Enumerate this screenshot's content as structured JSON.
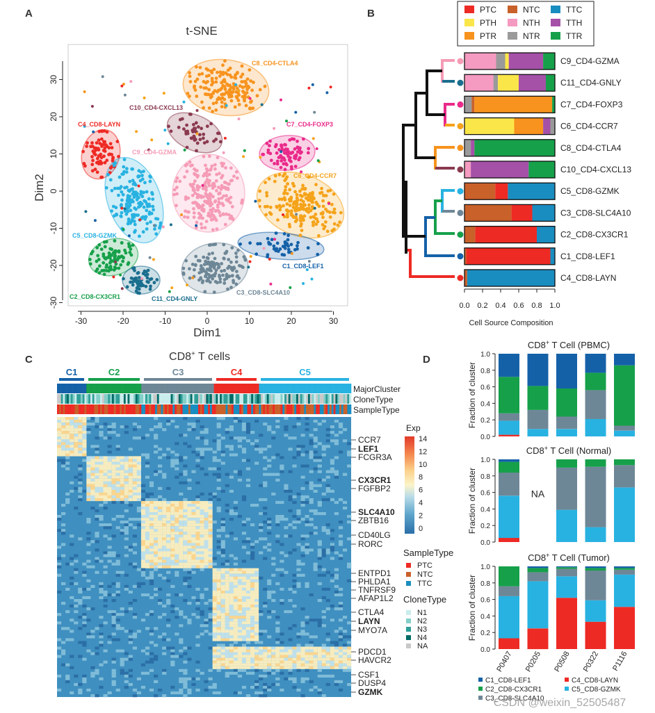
{
  "panel_letters": [
    "A",
    "B",
    "C",
    "D"
  ],
  "colors": {
    "C1": "#1561a8",
    "C2": "#16a04a",
    "C3": "#6e8797",
    "C4": "#ee2a24",
    "C5": "#28b2e1",
    "C6": "#f5a31a",
    "C7": "#ea2a8a",
    "C8": "#f7931e",
    "C9": "#f59bb6",
    "C10": "#8a3a4f",
    "C11": "#1a6e8e",
    "PTC": "#ee2a24",
    "NTC": "#c9612a",
    "TTC": "#1a8dc0",
    "PTH": "#fbe64a",
    "NTH": "#f59ac0",
    "TTH": "#a551a8",
    "PTR": "#f7931e",
    "NTR": "#9a9a9a",
    "TTR": "#16a04a",
    "N1": "#c9ecec",
    "N2": "#84cfc9",
    "N3": "#2f9e97",
    "N4": "#006a66",
    "NA": "#c9c9c9"
  },
  "tsne": {
    "title": "t-SNE",
    "xlabel": "Dim1",
    "ylabel": "Dim2",
    "xticks": [
      "-30",
      "-20",
      "-10",
      "0",
      "10",
      "20",
      "30"
    ],
    "yticks": [
      "30",
      "20",
      "10",
      "0",
      "-10",
      "-20",
      "-30"
    ],
    "clusters": [
      {
        "label": "C8_CD4-CTLA4",
        "color": "#f7931e"
      },
      {
        "label": "C10_CD4-CXCL13",
        "color": "#8a3a4f"
      },
      {
        "label": "C4_CD8-LAYN",
        "color": "#ee2a24"
      },
      {
        "label": "C7_CD4-FOXP3",
        "color": "#ea2a8a"
      },
      {
        "label": "C9_CD4-GZMA",
        "color": "#f59bb6"
      },
      {
        "label": "C6_CD4-CCR7",
        "color": "#f5a31a"
      },
      {
        "label": "C5_CD8-GZMK",
        "color": "#28b2e1"
      },
      {
        "label": "C1_CD8-LEF1",
        "color": "#1561a8"
      },
      {
        "label": "C2_CD8-CX3CR1",
        "color": "#16a04a"
      },
      {
        "label": "C11_CD4-GNLY",
        "color": "#1a6e8e"
      },
      {
        "label": "C3_CD8-SLC4A10",
        "color": "#6e8797"
      }
    ]
  },
  "panel_b": {
    "legend": [
      "PTC",
      "NTC",
      "TTC",
      "PTH",
      "NTH",
      "TTH",
      "PTR",
      "NTR",
      "TTR"
    ],
    "xlabel": "Cell Source Composition",
    "xticks": [
      "0.0",
      "0.2",
      "0.4",
      "0.6",
      "0.8",
      "1.0"
    ],
    "rows": [
      {
        "label": "C9_CD4-GZMA",
        "color": "#f59bb6",
        "segs": [
          [
            "NTH",
            0.35
          ],
          [
            "NTR",
            0.1
          ],
          [
            "PTH",
            0.04
          ],
          [
            "TTH",
            0.38
          ],
          [
            "TTR",
            0.13
          ]
        ]
      },
      {
        "label": "C11_CD4-GNLY",
        "color": "#1a6e8e",
        "segs": [
          [
            "NTH",
            0.32
          ],
          [
            "NTR",
            0.05
          ],
          [
            "PTH",
            0.23
          ],
          [
            "TTH",
            0.3
          ],
          [
            "TTR",
            0.1
          ]
        ]
      },
      {
        "label": "C7_CD4-FOXP3",
        "color": "#ea2a8a",
        "segs": [
          [
            "NTR",
            0.08
          ],
          [
            "NTC",
            0.03
          ],
          [
            "PTR",
            0.86
          ],
          [
            "TTR",
            0.03
          ]
        ]
      },
      {
        "label": "C6_CD4-CCR7",
        "color": "#f5a31a",
        "segs": [
          [
            "PTH",
            0.55
          ],
          [
            "PTR",
            0.32
          ],
          [
            "TTH",
            0.08
          ],
          [
            "NTR",
            0.05
          ]
        ]
      },
      {
        "label": "C8_CD4-CTLA4",
        "color": "#f7931e",
        "segs": [
          [
            "NTR",
            0.07
          ],
          [
            "TTH",
            0.04
          ],
          [
            "TTR",
            0.89
          ]
        ]
      },
      {
        "label": "C10_CD4-CXCL13",
        "color": "#8a3a4f",
        "segs": [
          [
            "NTH",
            0.07
          ],
          [
            "TTH",
            0.64
          ],
          [
            "TTR",
            0.29
          ]
        ]
      },
      {
        "label": "C5_CD8-GZMK",
        "color": "#28b2e1",
        "segs": [
          [
            "NTC",
            0.34
          ],
          [
            "PTC",
            0.14
          ],
          [
            "TTC",
            0.52
          ]
        ]
      },
      {
        "label": "C3_CD8-SLC4A10",
        "color": "#6e8797",
        "segs": [
          [
            "NTC",
            0.52
          ],
          [
            "PTC",
            0.23
          ],
          [
            "TTC",
            0.25
          ]
        ]
      },
      {
        "label": "C2_CD8-CX3CR1",
        "color": "#16a04a",
        "segs": [
          [
            "NTC",
            0.12
          ],
          [
            "PTC",
            0.68
          ],
          [
            "TTC",
            0.2
          ]
        ]
      },
      {
        "label": "C1_CD8-LEF1",
        "color": "#1561a8",
        "segs": [
          [
            "NTC",
            0.02
          ],
          [
            "PTC",
            0.93
          ],
          [
            "TTC",
            0.05
          ]
        ]
      },
      {
        "label": "C4_CD8-LAYN",
        "color": "#ee2a24",
        "segs": [
          [
            "NTC",
            0.03
          ],
          [
            "TTC",
            0.97
          ]
        ]
      }
    ]
  },
  "panel_c": {
    "title_main": "CD8",
    "title_sup": "+",
    "title_rest": " T cells",
    "groups": [
      "C1",
      "C2",
      "C3",
      "C4",
      "C5"
    ],
    "track_labels": [
      "MajorCluster",
      "CloneType",
      "SampleType"
    ],
    "genes": [
      "CCR7",
      "LEF1",
      "FCGR3A",
      "CX3CR1",
      "FGFBP2",
      "SLC4A10",
      "ZBTB16",
      "CD40LG",
      "RORC",
      "ENTPD1",
      "PHLDA1",
      "TNFRSF9",
      "AFAP1L2",
      "CTLA4",
      "LAYN",
      "MYO7A",
      "PDCD1",
      "HAVCR2",
      "CSF1",
      "DUSP4",
      "GZMK"
    ],
    "bold_genes": [
      "LEF1",
      "CX3CR1",
      "SLC4A10",
      "LAYN",
      "GZMK"
    ],
    "exp_title": "Exp",
    "exp_ticks": [
      "14",
      "12",
      "10",
      "8",
      "6",
      "4",
      "2",
      "0"
    ],
    "sample_legend_title": "SampleType",
    "sample_legend": [
      "PTC",
      "NTC",
      "TTC"
    ],
    "clone_legend_title": "CloneType",
    "clone_legend": [
      "N1",
      "N2",
      "N3",
      "N4",
      "NA"
    ]
  },
  "chart_data": [
    {
      "type": "bar",
      "stacked": true,
      "title": "CD8+ T Cell (PBMC)",
      "ylabel": "Fraction of  cluster",
      "categories": [
        "P0407",
        "P0205",
        "P0508",
        "P0322",
        "P1116"
      ],
      "ylim": [
        0,
        1
      ],
      "yticks": [
        "0.0",
        "0.2",
        "0.4",
        "0.6",
        "0.8",
        "1.0"
      ],
      "series": [
        {
          "name": "C4_CD8-LAYN",
          "values": [
            0.02,
            0.0,
            0.0,
            0.0,
            0.0
          ]
        },
        {
          "name": "C5_CD8-GZMK",
          "values": [
            0.17,
            0.09,
            0.09,
            0.21,
            0.07
          ]
        },
        {
          "name": "C3_CD8-SLC4A10",
          "values": [
            0.09,
            0.23,
            0.15,
            0.35,
            0.06
          ]
        },
        {
          "name": "C2_CD8-CX3CR1",
          "values": [
            0.44,
            0.29,
            0.34,
            0.21,
            0.73
          ]
        },
        {
          "name": "C1_CD8-LEF1",
          "values": [
            0.28,
            0.39,
            0.42,
            0.23,
            0.14
          ]
        }
      ]
    },
    {
      "type": "bar",
      "stacked": true,
      "title": "CD8+ T Cell (Normal)",
      "ylabel": "Fraction of cluster",
      "categories": [
        "P0407",
        "P0205",
        "P0508",
        "P0322",
        "P1116"
      ],
      "ylim": [
        0,
        1
      ],
      "yticks": [
        "0.0",
        "0.2",
        "0.4",
        "0.6",
        "0.8",
        "1.0"
      ],
      "na_label": "NA",
      "missing": [
        "P0205"
      ],
      "series": [
        {
          "name": "C4_CD8-LAYN",
          "values": [
            0.05,
            0,
            0.0,
            0.0,
            0.0
          ]
        },
        {
          "name": "C5_CD8-GZMK",
          "values": [
            0.51,
            0,
            0.39,
            0.18,
            0.66
          ]
        },
        {
          "name": "C3_CD8-SLC4A10",
          "values": [
            0.28,
            0,
            0.51,
            0.73,
            0.27
          ]
        },
        {
          "name": "C2_CD8-CX3CR1",
          "values": [
            0.13,
            0,
            0.1,
            0.09,
            0.07
          ]
        },
        {
          "name": "C1_CD8-LEF1",
          "values": [
            0.03,
            0,
            0.0,
            0.0,
            0.0
          ]
        }
      ]
    },
    {
      "type": "bar",
      "stacked": true,
      "title": "CD8+ T Cell (Tumor)",
      "ylabel": "Fraction of cluster",
      "categories": [
        "P0407",
        "P0205",
        "P0508",
        "P0322",
        "P1116"
      ],
      "ylim": [
        0,
        1
      ],
      "yticks": [
        "0.0",
        "0.2",
        "0.4",
        "0.6",
        "0.8",
        "1.0"
      ],
      "series": [
        {
          "name": "C4_CD8-LAYN",
          "values": [
            0.13,
            0.25,
            0.62,
            0.33,
            0.51
          ]
        },
        {
          "name": "C5_CD8-GZMK",
          "values": [
            0.51,
            0.57,
            0.26,
            0.26,
            0.39
          ]
        },
        {
          "name": "C3_CD8-SLC4A10",
          "values": [
            0.12,
            0.11,
            0.09,
            0.36,
            0.06
          ]
        },
        {
          "name": "C2_CD8-CX3CR1",
          "values": [
            0.24,
            0.05,
            0.02,
            0.03,
            0.02
          ]
        },
        {
          "name": "C1_CD8-LEF1",
          "values": [
            0.0,
            0.02,
            0.01,
            0.02,
            0.02
          ]
        }
      ]
    }
  ],
  "panel_d_legend": [
    {
      "name": "C1_CD8-LEF1",
      "color": "#1561a8"
    },
    {
      "name": "C4_CD8-LAYN",
      "color": "#ee2a24"
    },
    {
      "name": "C2_CD8-CX3CR1",
      "color": "#16a04a"
    },
    {
      "name": "C5_CD8-GZMK",
      "color": "#28b2e1"
    },
    {
      "name": "C3_CD8-SLC4A10",
      "color": "#6e8797"
    }
  ],
  "watermark": "CSDN @weixin_52505487"
}
